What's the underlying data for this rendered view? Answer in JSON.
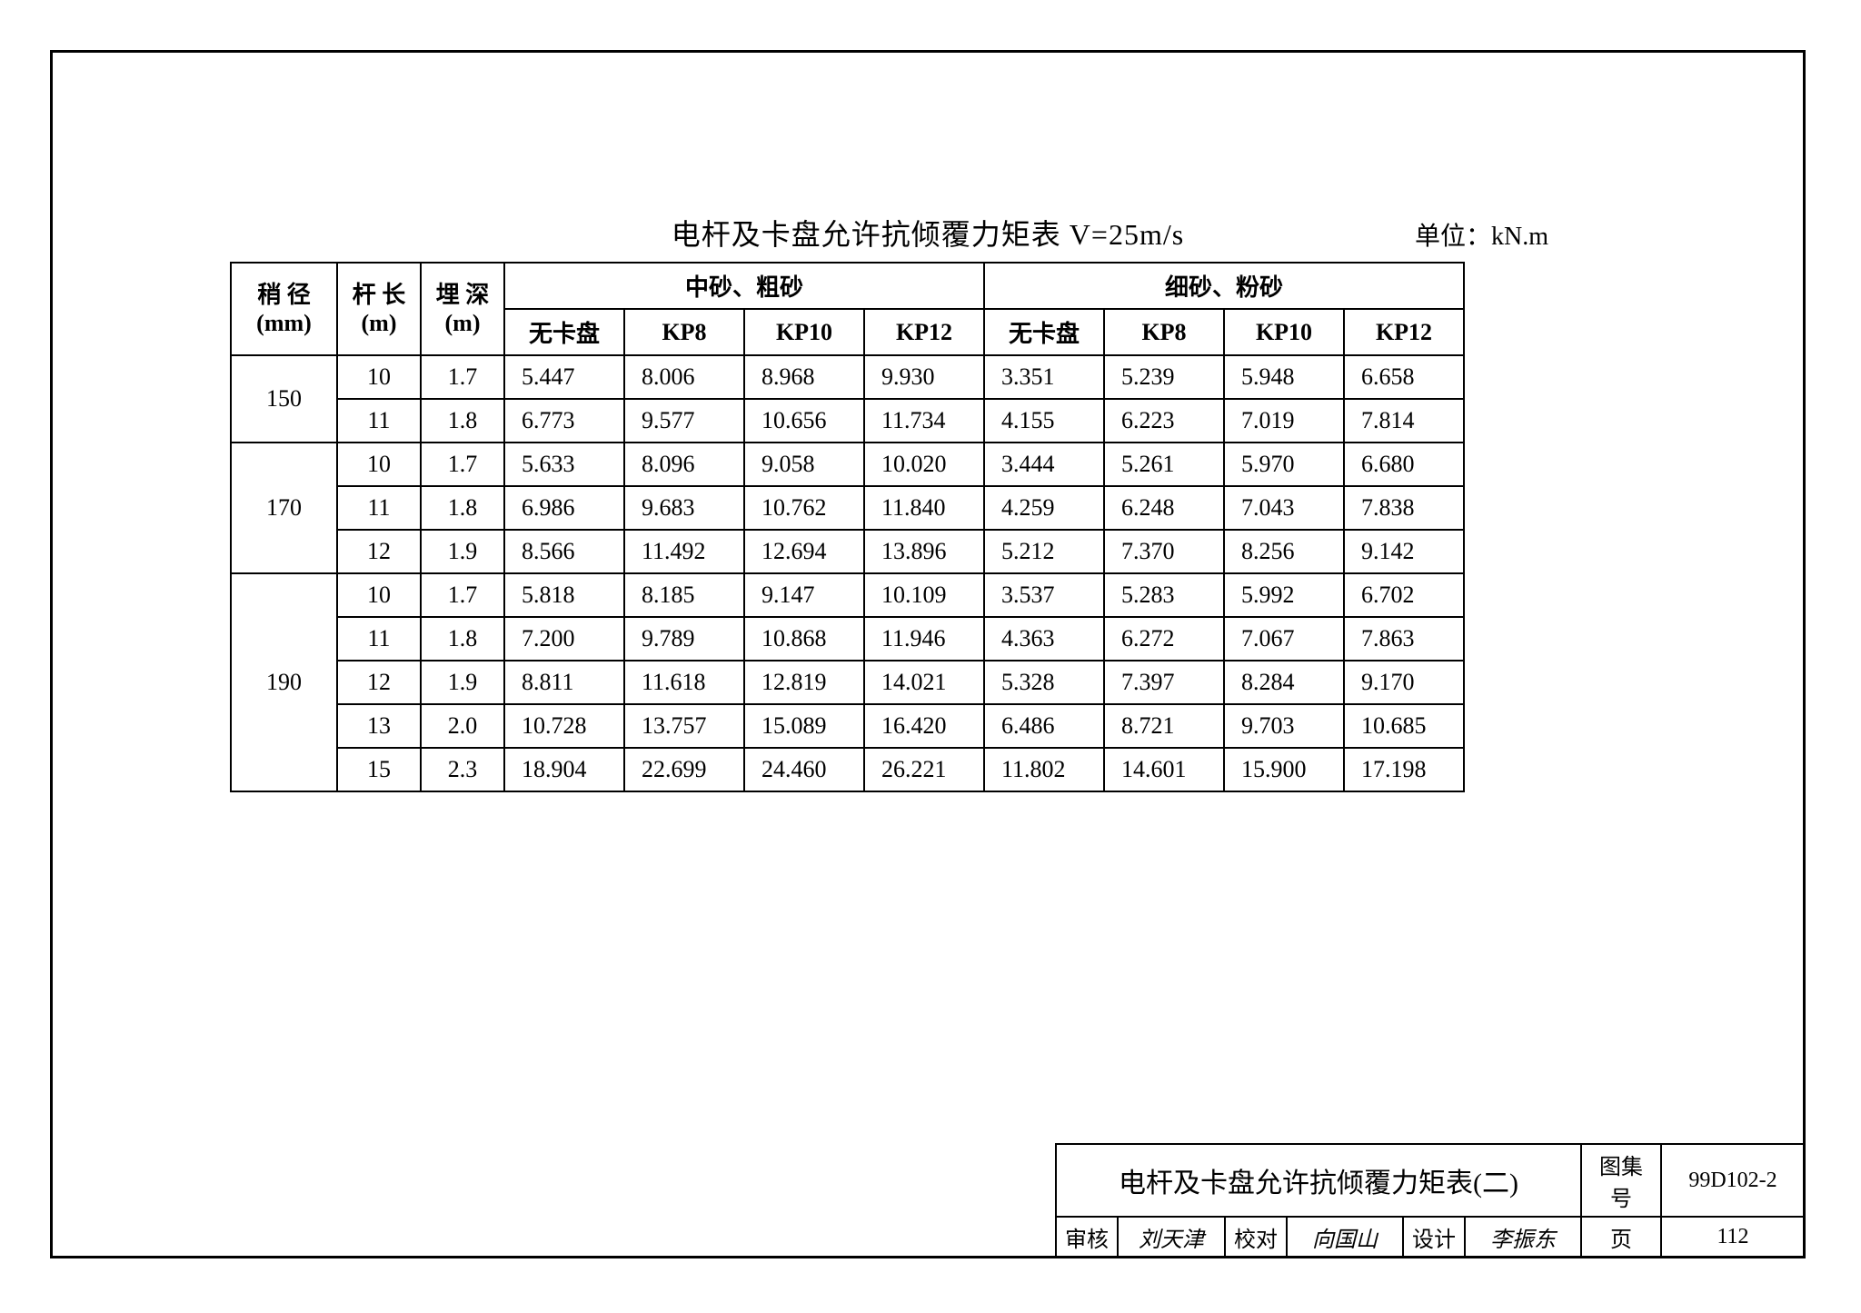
{
  "page": {
    "title": "电杆及卡盘允许抗倾覆力矩表  V=25m/s",
    "unit_label": "单位：kN.m"
  },
  "table": {
    "headers": {
      "shaojing_l1": "稍 径",
      "shaojing_l2": "(mm)",
      "ganchang_l1": "杆 长",
      "ganchang_l2": "(m)",
      "maishen_l1": "埋 深",
      "maishen_l2": "(m)",
      "group1": "中砂、粗砂",
      "group2": "细砂、粉砂",
      "sub_wkp": "无卡盘",
      "sub_kp8": "KP8",
      "sub_kp10": "KP10",
      "sub_kp12": "KP12"
    },
    "groups": [
      {
        "shaojing": "150",
        "rows": [
          {
            "gc": "10",
            "ms": "1.7",
            "v": [
              "5.447",
              "8.006",
              "8.968",
              "9.930",
              "3.351",
              "5.239",
              "5.948",
              "6.658"
            ]
          },
          {
            "gc": "11",
            "ms": "1.8",
            "v": [
              "6.773",
              "9.577",
              "10.656",
              "11.734",
              "4.155",
              "6.223",
              "7.019",
              "7.814"
            ]
          }
        ]
      },
      {
        "shaojing": "170",
        "rows": [
          {
            "gc": "10",
            "ms": "1.7",
            "v": [
              "5.633",
              "8.096",
              "9.058",
              "10.020",
              "3.444",
              "5.261",
              "5.970",
              "6.680"
            ]
          },
          {
            "gc": "11",
            "ms": "1.8",
            "v": [
              "6.986",
              "9.683",
              "10.762",
              "11.840",
              "4.259",
              "6.248",
              "7.043",
              "7.838"
            ]
          },
          {
            "gc": "12",
            "ms": "1.9",
            "v": [
              "8.566",
              "11.492",
              "12.694",
              "13.896",
              "5.212",
              "7.370",
              "8.256",
              "9.142"
            ]
          }
        ]
      },
      {
        "shaojing": "190",
        "rows": [
          {
            "gc": "10",
            "ms": "1.7",
            "v": [
              "5.818",
              "8.185",
              "9.147",
              "10.109",
              "3.537",
              "5.283",
              "5.992",
              "6.702"
            ]
          },
          {
            "gc": "11",
            "ms": "1.8",
            "v": [
              "7.200",
              "9.789",
              "10.868",
              "11.946",
              "4.363",
              "6.272",
              "7.067",
              "7.863"
            ]
          },
          {
            "gc": "12",
            "ms": "1.9",
            "v": [
              "8.811",
              "11.618",
              "12.819",
              "14.021",
              "5.328",
              "7.397",
              "8.284",
              "9.170"
            ]
          },
          {
            "gc": "13",
            "ms": "2.0",
            "v": [
              "10.728",
              "13.757",
              "15.089",
              "16.420",
              "6.486",
              "8.721",
              "9.703",
              "10.685"
            ]
          },
          {
            "gc": "15",
            "ms": "2.3",
            "v": [
              "18.904",
              "22.699",
              "24.460",
              "26.221",
              "11.802",
              "14.601",
              "15.900",
              "17.198"
            ]
          }
        ]
      }
    ]
  },
  "titleblock": {
    "sheet_title": "电杆及卡盘允许抗倾覆力矩表(二)",
    "tuji_label": "图集号",
    "tuji_value": "99D102-2",
    "shenhe_label": "审核",
    "shenhe_sig": "刘天津",
    "jiaodui_label": "校对",
    "jiaodui_sig": "向国山",
    "sheji_label": "设计",
    "sheji_sig": "李振东",
    "page_label": "页",
    "page_value": "112"
  }
}
